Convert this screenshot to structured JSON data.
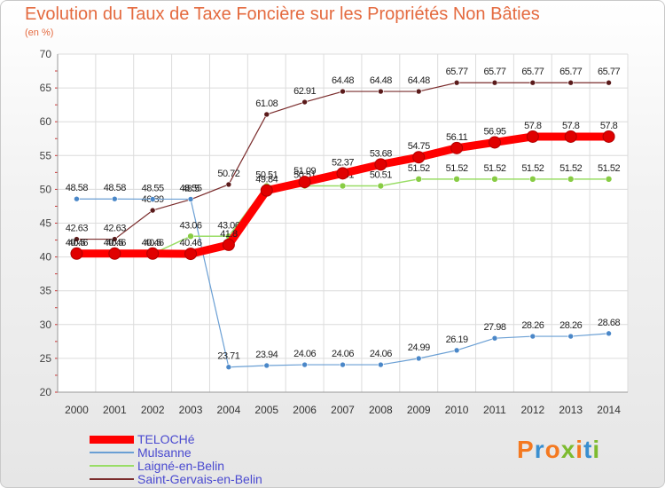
{
  "title": "Evolution du Taux de Taxe Foncière sur les Propriétés Non Bâties",
  "subtitle": "(en %)",
  "logo": {
    "text": "Proxiti",
    "colors": [
      "#f47920",
      "#3a8fd0",
      "#f47920",
      "#7dbb2f",
      "#f47920",
      "#3a8fd0",
      "#7dbb2f"
    ]
  },
  "chart_data": {
    "type": "line",
    "title": "Evolution du Taux de Taxe Foncière sur les Propriétés Non Bâties",
    "ylabel": "(en %)",
    "xlabel": "",
    "ylim": [
      20,
      70
    ],
    "yticks": [
      20,
      25,
      30,
      35,
      40,
      45,
      50,
      55,
      60,
      65,
      70
    ],
    "categories": [
      "2000",
      "2001",
      "2002",
      "2003",
      "2004",
      "2005",
      "2006",
      "2007",
      "2008",
      "2009",
      "2010",
      "2011",
      "2012",
      "2013",
      "2014"
    ],
    "grid": true,
    "legend_position": "bottom-left",
    "series": [
      {
        "name": "Saint-Gervais-en-Belin",
        "color": "#7b2d2d",
        "dot": "#5a1a1a",
        "width": 1.2,
        "r": 3,
        "values": [
          42.63,
          42.63,
          46.89,
          48.5,
          50.72,
          61.08,
          62.91,
          64.48,
          64.48,
          64.48,
          65.77,
          65.77,
          65.77,
          65.77,
          65.77
        ],
        "labels": [
          "42.63",
          "42.63",
          "46.89",
          "48.5",
          "50.72",
          "61.08",
          "62.91",
          "64.48",
          "64.48",
          "64.48",
          "65.77",
          "65.77",
          "65.77",
          "65.77",
          "65.77"
        ]
      },
      {
        "name": "Mulsanne",
        "color": "#6a9fd4",
        "dot": "#4a87c8",
        "width": 1.2,
        "r": 3,
        "values": [
          48.58,
          48.58,
          48.55,
          48.55,
          23.71,
          23.94,
          24.06,
          24.06,
          24.06,
          24.99,
          26.19,
          27.98,
          28.26,
          28.26,
          28.68
        ],
        "labels": [
          "48.58",
          "48.58",
          "48.55",
          "48.55",
          "23.71",
          "23.94",
          "24.06",
          "24.06",
          "24.06",
          "24.99",
          "26.19",
          "27.98",
          "28.26",
          "28.26",
          "28.68"
        ]
      },
      {
        "name": "Laigné-en-Belin",
        "color": "#99dd66",
        "dot": "#88cc44",
        "width": 1.5,
        "r": 3.5,
        "values": [
          40.46,
          40.46,
          40.46,
          43.06,
          43.06,
          50.51,
          50.51,
          50.51,
          50.51,
          51.52,
          51.52,
          51.52,
          51.52,
          51.52,
          51.52
        ],
        "labels": [
          "40.46",
          "40.46",
          "40.46",
          "43.06",
          "43.06",
          "50.51",
          "50.51",
          "50.51",
          "50.51",
          "51.52",
          "51.52",
          "51.52",
          "51.52",
          "51.52",
          "51.52"
        ]
      },
      {
        "name": "TELOCHé",
        "color": "#ff0000",
        "dot": "#e00000",
        "width": 9,
        "r": 6.5,
        "values": [
          40.5,
          40.5,
          40.5,
          40.46,
          41.8,
          49.84,
          51.09,
          52.37,
          53.68,
          54.75,
          56.11,
          56.95,
          57.8,
          57.8,
          57.8
        ],
        "labels": [
          "40.5",
          "40.5",
          "40.5",
          "40.46",
          "41.8",
          "49.84",
          "51.09",
          "52.37",
          "53.68",
          "54.75",
          "56.11",
          "56.95",
          "57.8",
          "57.8",
          "57.8"
        ]
      }
    ]
  },
  "legend": [
    {
      "label": "TELOCHé",
      "color": "#ff0000",
      "thickness": 9
    },
    {
      "label": "Mulsanne",
      "color": "#6a9fd4",
      "thickness": 2
    },
    {
      "label": "Laigné-en-Belin",
      "color": "#99dd66",
      "thickness": 2
    },
    {
      "label": "Saint-Gervais-en-Belin",
      "color": "#7b2d2d",
      "thickness": 2
    }
  ]
}
